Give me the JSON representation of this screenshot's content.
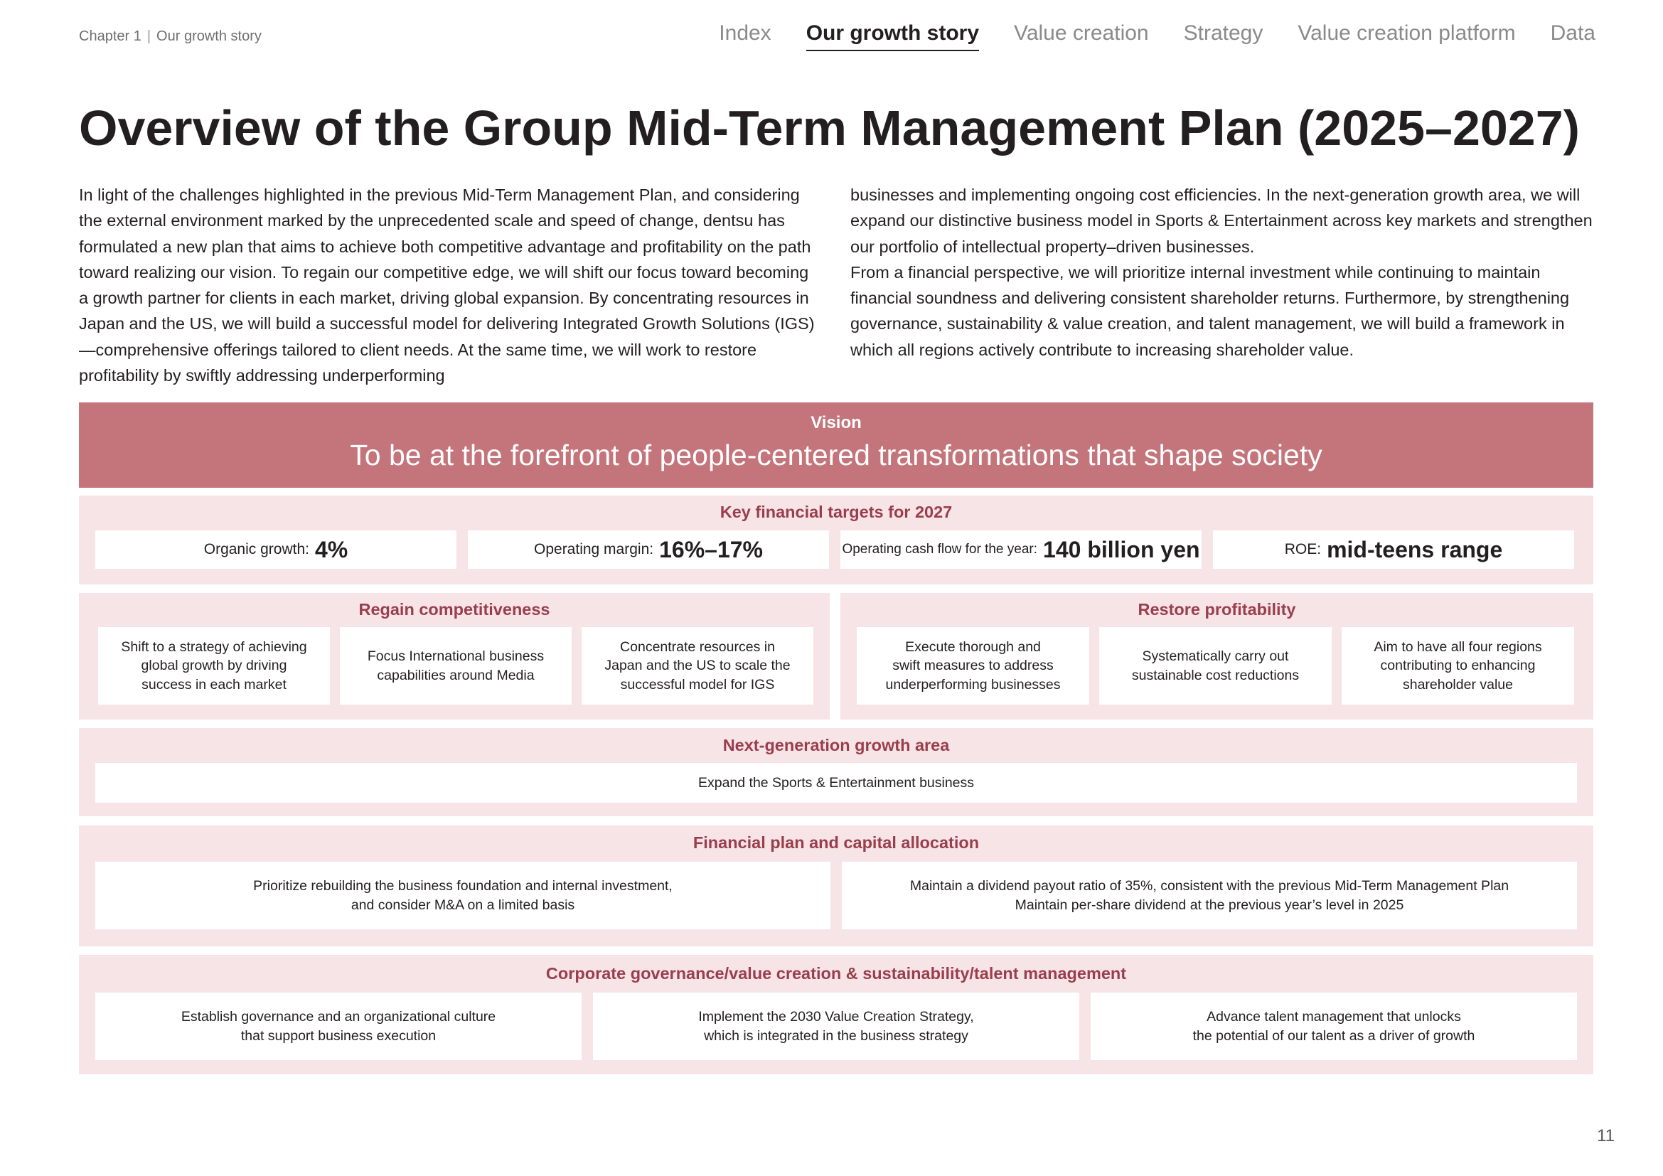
{
  "header": {
    "chapter": "Chapter 1",
    "section": "Our growth story",
    "nav": [
      "Index",
      "Our growth story",
      "Value creation",
      "Strategy",
      "Value creation platform",
      "Data"
    ]
  },
  "title": "Overview of the Group Mid-Term Management Plan (2025–2027)",
  "intro": {
    "left": "In light of the challenges highlighted in the previous Mid-Term Management Plan, and considering the external environment marked by the unprecedented scale and speed of change, dentsu has formulated a new plan that aims to achieve both competitive advantage and profitability on the path toward realizing our vision. To regain our competitive edge, we will shift our focus toward becoming a growth partner for clients in each market, driving global expansion. By concentrating resources in Japan and the US, we will build a successful model for delivering Integrated Growth Solutions (IGS)—comprehensive offerings tailored to client needs. At the same time, we will work to restore profitability by swiftly addressing underperforming",
    "right_p1": "businesses and implementing ongoing cost efficiencies. In the next-generation growth area, we will expand our distinctive business model in Sports & Entertainment across key markets and strengthen our portfolio of intellectual property–driven businesses.",
    "right_p2": "From a financial perspective, we will prioritize internal investment while continuing to maintain financial soundness and delivering consistent shareholder returns. Furthermore, by strengthening governance, sustainability & value creation, and talent management, we will build a framework in which all regions actively contribute to increasing shareholder value."
  },
  "vision": {
    "label": "Vision",
    "text": "To be at the forefront of people-centered transformations that shape society"
  },
  "targets": {
    "title": "Key financial targets for 2027",
    "items": [
      {
        "label": "Organic growth:",
        "value": "4%"
      },
      {
        "label": "Operating margin:",
        "value": "16%–17%"
      },
      {
        "label": "Operating cash flow for the year:",
        "value": "140 billion yen"
      },
      {
        "label": "ROE:",
        "value": "mid-teens range"
      }
    ]
  },
  "regain": {
    "title": "Regain competitiveness",
    "items": [
      [
        "Shift to a strategy of achieving",
        "global growth by driving",
        "success in each market"
      ],
      [
        "Focus International business",
        "capabilities around Media"
      ],
      [
        "Concentrate resources in",
        "Japan and the US to scale the",
        "successful model for IGS"
      ]
    ]
  },
  "restore": {
    "title": "Restore profitability",
    "items": [
      [
        "Execute thorough and",
        "swift measures to address",
        "underperforming businesses"
      ],
      [
        "Systematically carry out",
        "sustainable cost reductions"
      ],
      [
        "Aim to have all four regions",
        "contributing to enhancing",
        "shareholder value"
      ]
    ]
  },
  "nextgen": {
    "title": "Next-generation growth area",
    "item": "Expand the Sports & Entertainment business"
  },
  "financial": {
    "title": "Financial plan and capital allocation",
    "items": [
      [
        "Prioritize rebuilding the business foundation and internal investment,",
        "and consider M&A on a limited basis"
      ],
      [
        "Maintain a dividend payout ratio of 35%, consistent with the previous Mid-Term Management Plan",
        "Maintain per-share dividend at the previous year’s level in 2025"
      ]
    ]
  },
  "governance": {
    "title": "Corporate governance/value creation & sustainability/talent management",
    "items": [
      [
        "Establish governance and an organizational culture",
        "that support business execution"
      ],
      [
        "Implement the 2030 Value Creation Strategy,",
        "which is integrated in the business strategy"
      ],
      [
        "Advance talent management that unlocks",
        "the potential of our talent as a driver of growth"
      ]
    ]
  },
  "page_number": "11"
}
